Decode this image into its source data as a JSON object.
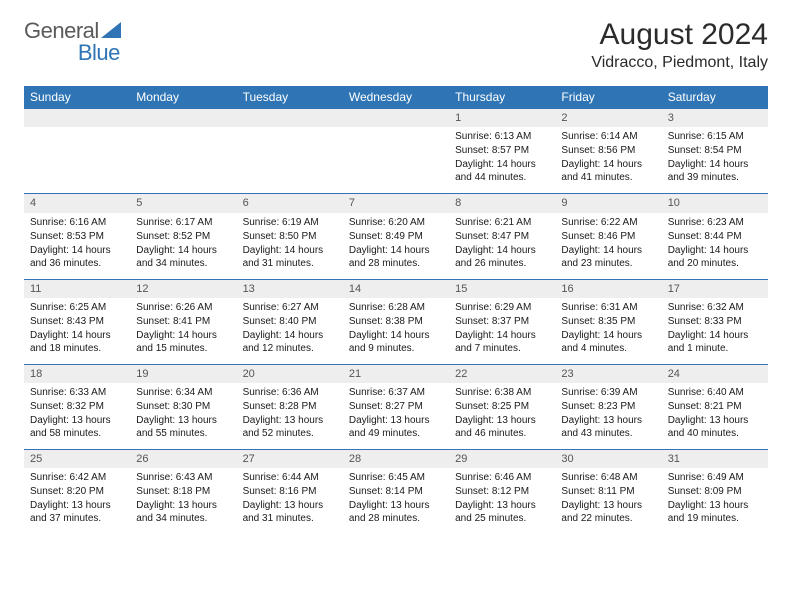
{
  "logo": {
    "part1": "General",
    "part2": "Blue"
  },
  "title": "August 2024",
  "location": "Vidracco, Piedmont, Italy",
  "colors": {
    "header_bg": "#2f75b5",
    "header_text": "#ffffff",
    "daynum_bg": "#eeeeee",
    "daynum_border": "#2f75b5",
    "logo_gray": "#5a5a5a",
    "logo_blue": "#2f75b5"
  },
  "weekdays": [
    "Sunday",
    "Monday",
    "Tuesday",
    "Wednesday",
    "Thursday",
    "Friday",
    "Saturday"
  ],
  "weeks": [
    {
      "nums": [
        "",
        "",
        "",
        "",
        "1",
        "2",
        "3"
      ],
      "cells": [
        null,
        null,
        null,
        null,
        {
          "sunrise": "6:13 AM",
          "sunset": "8:57 PM",
          "daylight": "14 hours and 44 minutes."
        },
        {
          "sunrise": "6:14 AM",
          "sunset": "8:56 PM",
          "daylight": "14 hours and 41 minutes."
        },
        {
          "sunrise": "6:15 AM",
          "sunset": "8:54 PM",
          "daylight": "14 hours and 39 minutes."
        }
      ]
    },
    {
      "nums": [
        "4",
        "5",
        "6",
        "7",
        "8",
        "9",
        "10"
      ],
      "cells": [
        {
          "sunrise": "6:16 AM",
          "sunset": "8:53 PM",
          "daylight": "14 hours and 36 minutes."
        },
        {
          "sunrise": "6:17 AM",
          "sunset": "8:52 PM",
          "daylight": "14 hours and 34 minutes."
        },
        {
          "sunrise": "6:19 AM",
          "sunset": "8:50 PM",
          "daylight": "14 hours and 31 minutes."
        },
        {
          "sunrise": "6:20 AM",
          "sunset": "8:49 PM",
          "daylight": "14 hours and 28 minutes."
        },
        {
          "sunrise": "6:21 AM",
          "sunset": "8:47 PM",
          "daylight": "14 hours and 26 minutes."
        },
        {
          "sunrise": "6:22 AM",
          "sunset": "8:46 PM",
          "daylight": "14 hours and 23 minutes."
        },
        {
          "sunrise": "6:23 AM",
          "sunset": "8:44 PM",
          "daylight": "14 hours and 20 minutes."
        }
      ]
    },
    {
      "nums": [
        "11",
        "12",
        "13",
        "14",
        "15",
        "16",
        "17"
      ],
      "cells": [
        {
          "sunrise": "6:25 AM",
          "sunset": "8:43 PM",
          "daylight": "14 hours and 18 minutes."
        },
        {
          "sunrise": "6:26 AM",
          "sunset": "8:41 PM",
          "daylight": "14 hours and 15 minutes."
        },
        {
          "sunrise": "6:27 AM",
          "sunset": "8:40 PM",
          "daylight": "14 hours and 12 minutes."
        },
        {
          "sunrise": "6:28 AM",
          "sunset": "8:38 PM",
          "daylight": "14 hours and 9 minutes."
        },
        {
          "sunrise": "6:29 AM",
          "sunset": "8:37 PM",
          "daylight": "14 hours and 7 minutes."
        },
        {
          "sunrise": "6:31 AM",
          "sunset": "8:35 PM",
          "daylight": "14 hours and 4 minutes."
        },
        {
          "sunrise": "6:32 AM",
          "sunset": "8:33 PM",
          "daylight": "14 hours and 1 minute."
        }
      ]
    },
    {
      "nums": [
        "18",
        "19",
        "20",
        "21",
        "22",
        "23",
        "24"
      ],
      "cells": [
        {
          "sunrise": "6:33 AM",
          "sunset": "8:32 PM",
          "daylight": "13 hours and 58 minutes."
        },
        {
          "sunrise": "6:34 AM",
          "sunset": "8:30 PM",
          "daylight": "13 hours and 55 minutes."
        },
        {
          "sunrise": "6:36 AM",
          "sunset": "8:28 PM",
          "daylight": "13 hours and 52 minutes."
        },
        {
          "sunrise": "6:37 AM",
          "sunset": "8:27 PM",
          "daylight": "13 hours and 49 minutes."
        },
        {
          "sunrise": "6:38 AM",
          "sunset": "8:25 PM",
          "daylight": "13 hours and 46 minutes."
        },
        {
          "sunrise": "6:39 AM",
          "sunset": "8:23 PM",
          "daylight": "13 hours and 43 minutes."
        },
        {
          "sunrise": "6:40 AM",
          "sunset": "8:21 PM",
          "daylight": "13 hours and 40 minutes."
        }
      ]
    },
    {
      "nums": [
        "25",
        "26",
        "27",
        "28",
        "29",
        "30",
        "31"
      ],
      "cells": [
        {
          "sunrise": "6:42 AM",
          "sunset": "8:20 PM",
          "daylight": "13 hours and 37 minutes."
        },
        {
          "sunrise": "6:43 AM",
          "sunset": "8:18 PM",
          "daylight": "13 hours and 34 minutes."
        },
        {
          "sunrise": "6:44 AM",
          "sunset": "8:16 PM",
          "daylight": "13 hours and 31 minutes."
        },
        {
          "sunrise": "6:45 AM",
          "sunset": "8:14 PM",
          "daylight": "13 hours and 28 minutes."
        },
        {
          "sunrise": "6:46 AM",
          "sunset": "8:12 PM",
          "daylight": "13 hours and 25 minutes."
        },
        {
          "sunrise": "6:48 AM",
          "sunset": "8:11 PM",
          "daylight": "13 hours and 22 minutes."
        },
        {
          "sunrise": "6:49 AM",
          "sunset": "8:09 PM",
          "daylight": "13 hours and 19 minutes."
        }
      ]
    }
  ],
  "labels": {
    "sunrise": "Sunrise: ",
    "sunset": "Sunset: ",
    "daylight": "Daylight: "
  }
}
